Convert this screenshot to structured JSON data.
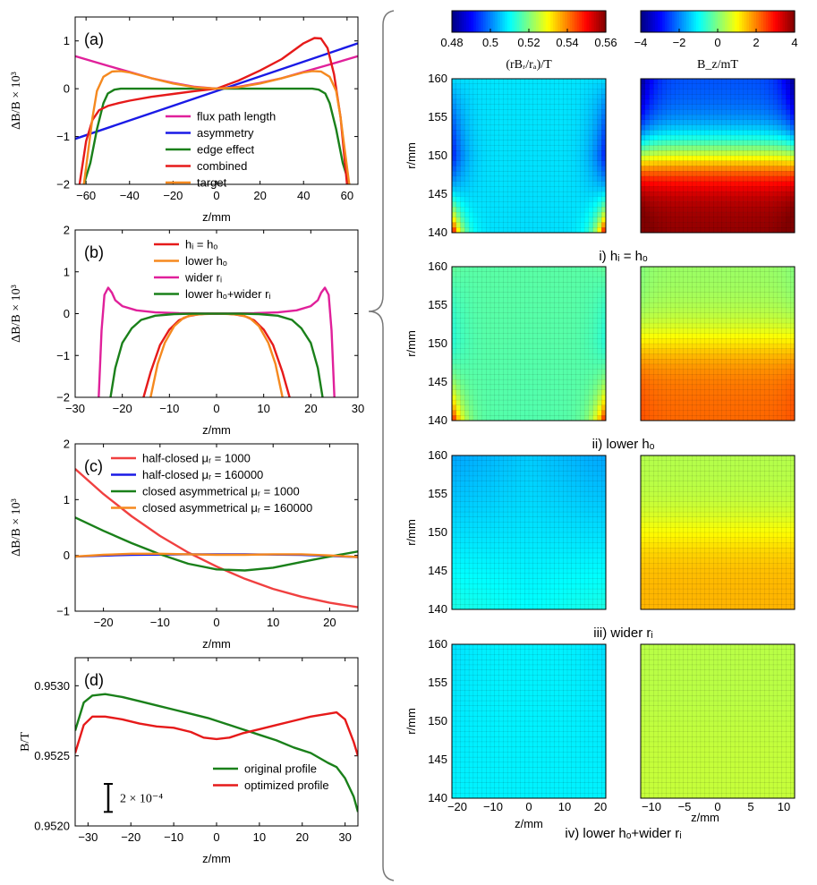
{
  "chart_data": [
    {
      "panel": "(a)",
      "type": "line",
      "xlabel": "z/mm",
      "ylabel": "ΔB/B × 10³",
      "xlim": [
        -65,
        65
      ],
      "ylim": [
        -2,
        1.5
      ],
      "xticks": [
        -60,
        -40,
        -20,
        0,
        20,
        40,
        60
      ],
      "yticks": [
        -2,
        -1,
        0,
        1
      ],
      "series": [
        {
          "name": "flux path length",
          "color": "#e0209a",
          "x": [
            -65,
            -50,
            -40,
            -30,
            -20,
            -10,
            0,
            10,
            20,
            30,
            40,
            50,
            65
          ],
          "y": [
            0.68,
            0.48,
            0.35,
            0.22,
            0.12,
            0.04,
            0,
            0.04,
            0.12,
            0.22,
            0.35,
            0.48,
            0.68
          ]
        },
        {
          "name": "asymmetry",
          "color": "#1a1ae6",
          "x": [
            -65,
            65
          ],
          "y": [
            -1.05,
            0.95
          ]
        },
        {
          "name": "edge effect",
          "color": "#1a801a",
          "x": [
            -61,
            -58,
            -55,
            -52,
            -50,
            -47,
            -44,
            -40,
            -20,
            0,
            20,
            40,
            44,
            47,
            50,
            52,
            55,
            58,
            61
          ],
          "y": [
            -2,
            -1.55,
            -0.85,
            -0.3,
            -0.1,
            -0.02,
            0,
            0,
            0,
            0,
            0,
            0,
            0,
            -0.02,
            -0.1,
            -0.3,
            -0.85,
            -1.55,
            -2
          ]
        },
        {
          "name": "combined",
          "color": "#e61a1a",
          "x": [
            -63,
            -60,
            -57,
            -54,
            -50,
            -45,
            -40,
            -30,
            -20,
            -10,
            0,
            10,
            20,
            30,
            40,
            45,
            48,
            51,
            54,
            57,
            60
          ],
          "y": [
            -2,
            -1.1,
            -0.65,
            -0.45,
            -0.36,
            -0.3,
            -0.25,
            -0.17,
            -0.11,
            -0.05,
            0,
            0.17,
            0.38,
            0.62,
            0.95,
            1.06,
            1.05,
            0.85,
            0.3,
            -0.6,
            -2
          ]
        },
        {
          "name": "target",
          "color": "#f5891f",
          "x": [
            -61,
            -59,
            -57,
            -55,
            -52,
            -48,
            -44,
            -40,
            -30,
            -20,
            -10,
            0,
            10,
            20,
            30,
            40,
            44,
            48,
            52,
            55,
            57,
            59,
            61
          ],
          "y": [
            -2,
            -1.3,
            -0.6,
            -0.05,
            0.25,
            0.36,
            0.37,
            0.34,
            0.22,
            0.11,
            0.03,
            0,
            0.03,
            0.11,
            0.22,
            0.34,
            0.37,
            0.36,
            0.25,
            -0.05,
            -0.6,
            -1.3,
            -2
          ]
        }
      ]
    },
    {
      "panel": "(b)",
      "type": "line",
      "xlabel": "z/mm",
      "ylabel": "ΔB/B × 10³",
      "xlim": [
        -30,
        30
      ],
      "ylim": [
        -2,
        2
      ],
      "xticks": [
        -30,
        -20,
        -10,
        0,
        10,
        20,
        30
      ],
      "yticks": [
        -2,
        -1,
        0,
        1,
        2
      ],
      "series": [
        {
          "name": "hᵢ = hₒ",
          "color": "#e61a1a",
          "x": [
            -15.5,
            -14,
            -12,
            -10,
            -8,
            -6,
            -4,
            -2,
            0,
            2,
            4,
            6,
            8,
            10,
            12,
            14,
            15.5
          ],
          "y": [
            -2,
            -1.4,
            -0.75,
            -0.38,
            -0.16,
            -0.06,
            -0.02,
            0,
            0,
            0,
            -0.02,
            -0.06,
            -0.16,
            -0.38,
            -0.75,
            -1.4,
            -2
          ]
        },
        {
          "name": "lower hₒ",
          "color": "#f5891f",
          "x": [
            -14,
            -12.5,
            -11,
            -9,
            -7,
            -5,
            -3,
            0,
            3,
            5,
            7,
            9,
            11,
            12.5,
            14
          ],
          "y": [
            -2,
            -1.2,
            -0.7,
            -0.3,
            -0.1,
            -0.03,
            -0.01,
            0,
            -0.01,
            -0.03,
            -0.1,
            -0.3,
            -0.7,
            -1.2,
            -2
          ]
        },
        {
          "name": "wider rᵢ",
          "color": "#e0209a",
          "x": [
            -25,
            -24.4,
            -23.8,
            -23,
            -22.2,
            -21.5,
            -20,
            -17,
            -13,
            -8,
            0,
            8,
            13,
            17,
            20,
            21.5,
            22.2,
            23,
            23.8,
            24.4,
            25
          ],
          "y": [
            -2,
            -0.4,
            0.45,
            0.62,
            0.5,
            0.32,
            0.18,
            0.08,
            0.03,
            0.01,
            0,
            0.01,
            0.03,
            0.08,
            0.18,
            0.32,
            0.5,
            0.62,
            0.45,
            -0.4,
            -2
          ]
        },
        {
          "name": "lower hₒ+wider rᵢ",
          "color": "#1a801a",
          "x": [
            -22.5,
            -21.5,
            -20,
            -18,
            -16,
            -13,
            -9,
            -5,
            0,
            5,
            9,
            13,
            16,
            18,
            20,
            21.5,
            22.5
          ],
          "y": [
            -2,
            -1.3,
            -0.7,
            -0.35,
            -0.15,
            -0.05,
            -0.01,
            0,
            0,
            0,
            -0.01,
            -0.05,
            -0.15,
            -0.35,
            -0.7,
            -1.3,
            -2
          ]
        }
      ]
    },
    {
      "panel": "(c)",
      "type": "line",
      "xlabel": "z/mm",
      "ylabel": "ΔB/B × 10³",
      "xlim": [
        -25,
        25
      ],
      "ylim": [
        -1,
        2
      ],
      "xticks": [
        -20,
        -10,
        0,
        10,
        20
      ],
      "yticks": [
        -1,
        0,
        1,
        2
      ],
      "series": [
        {
          "name": "half-closed μᵣ = 1000",
          "color": "#f04040",
          "x": [
            -25,
            -20,
            -15,
            -10,
            -5,
            0,
            5,
            10,
            15,
            20,
            25
          ],
          "y": [
            1.55,
            1.1,
            0.7,
            0.35,
            0.05,
            -0.2,
            -0.42,
            -0.6,
            -0.74,
            -0.85,
            -0.93
          ]
        },
        {
          "name": "half-closed μᵣ = 160000",
          "color": "#1a1ae6",
          "x": [
            -25,
            -15,
            -5,
            5,
            15,
            25
          ],
          "y": [
            -0.02,
            0.01,
            0.02,
            0.02,
            0.01,
            -0.03
          ]
        },
        {
          "name": "closed asymmetrical μᵣ = 1000",
          "color": "#1a801a",
          "x": [
            -25,
            -20,
            -15,
            -10,
            -5,
            0,
            5,
            10,
            15,
            20,
            25
          ],
          "y": [
            0.68,
            0.44,
            0.22,
            0.02,
            -0.15,
            -0.25,
            -0.27,
            -0.22,
            -0.12,
            -0.02,
            0.07
          ]
        },
        {
          "name": "closed asymmetrical μᵣ = 160000",
          "color": "#f5891f",
          "x": [
            -25,
            -20,
            -15,
            -10,
            -5,
            0,
            5,
            10,
            15,
            20,
            25
          ],
          "y": [
            -0.02,
            0.01,
            0.03,
            0.03,
            0.02,
            0.01,
            0.01,
            0.02,
            0.02,
            0.0,
            -0.03
          ]
        }
      ]
    },
    {
      "panel": "(d)",
      "type": "line",
      "xlabel": "z/mm",
      "ylabel": "B/T",
      "xlim": [
        -33,
        33
      ],
      "ylim": [
        0.952,
        0.9532
      ],
      "xticks": [
        -30,
        -20,
        -10,
        0,
        10,
        20,
        30
      ],
      "yticks": [
        0.952,
        0.9525,
        0.953
      ],
      "ytick_labels": [
        "0.9520",
        "0.9525",
        "0.9530"
      ],
      "scale_bar": "2 × 10⁻⁴",
      "series": [
        {
          "name": "original profile",
          "color": "#1a801a",
          "x": [
            -33,
            -31,
            -29,
            -26,
            -22,
            -18,
            -14,
            -10,
            -6,
            -2,
            2,
            6,
            10,
            14,
            18,
            22,
            26,
            28,
            30,
            32,
            33
          ],
          "y": [
            0.95268,
            0.95288,
            0.95293,
            0.95294,
            0.95292,
            0.95289,
            0.95286,
            0.95283,
            0.9528,
            0.95277,
            0.95273,
            0.95269,
            0.95265,
            0.95261,
            0.95256,
            0.95252,
            0.95245,
            0.95242,
            0.95234,
            0.95221,
            0.9521
          ]
        },
        {
          "name": "optimized profile",
          "color": "#e61a1a",
          "x": [
            -33,
            -31,
            -29,
            -26,
            -22,
            -18,
            -14,
            -10,
            -6,
            -3,
            0,
            3,
            6,
            10,
            14,
            18,
            22,
            26,
            28,
            30,
            32,
            33
          ],
          "y": [
            0.95252,
            0.95272,
            0.95278,
            0.95278,
            0.95276,
            0.95273,
            0.95271,
            0.9527,
            0.95267,
            0.95263,
            0.95262,
            0.95263,
            0.95266,
            0.95269,
            0.95272,
            0.95275,
            0.95278,
            0.9528,
            0.95281,
            0.95276,
            0.9526,
            0.9525
          ]
        }
      ]
    },
    {
      "panel": "heatmaps",
      "type": "heatmap",
      "colorbars": [
        {
          "label": "(rBᵣ/rₐ)/T",
          "range": [
            0.48,
            0.56
          ],
          "ticks": [
            "0.48",
            "0.5",
            "0.52",
            "0.54",
            "0.56"
          ]
        },
        {
          "label": "B_z/mT",
          "range": [
            -4,
            4
          ],
          "ticks": [
            "-4",
            "-2",
            "0",
            "2",
            "4"
          ]
        }
      ],
      "ylabel": "r/mm",
      "yticks": [
        "160",
        "155",
        "150",
        "145",
        "140"
      ],
      "xlabel": "z/mm",
      "xticks_left": [
        "-20",
        "-10",
        "0",
        "10",
        "20"
      ],
      "xticks_right": [
        "-10",
        "-5",
        "0",
        "5",
        "10"
      ],
      "rows": [
        {
          "caption": "i) hᵢ = hₒ",
          "left_base": 0.508,
          "left_edge": -0.014,
          "left_corner": 0.05,
          "right_top": -2.4,
          "right_bottom": 3.9,
          "right_edge": 0.4
        },
        {
          "caption": "ii) lower hₒ",
          "left_base": 0.517,
          "left_edge": -0.004,
          "left_corner": 0.035,
          "right_top": 0.2,
          "right_bottom": 2.2,
          "right_edge": 0.2
        },
        {
          "caption": "iii) wider rᵢ",
          "left_base": 0.506,
          "left_edge": -0.002,
          "left_corner": 0.003,
          "right_top": 0.4,
          "right_bottom": 1.6,
          "right_edge": 0.0
        },
        {
          "caption": "iv) lower hₒ+wider rᵢ",
          "left_base": 0.509,
          "left_edge": -0.001,
          "left_corner": 0.0,
          "right_top": 0.45,
          "right_bottom": 0.55,
          "right_edge": 0.0
        }
      ]
    }
  ]
}
